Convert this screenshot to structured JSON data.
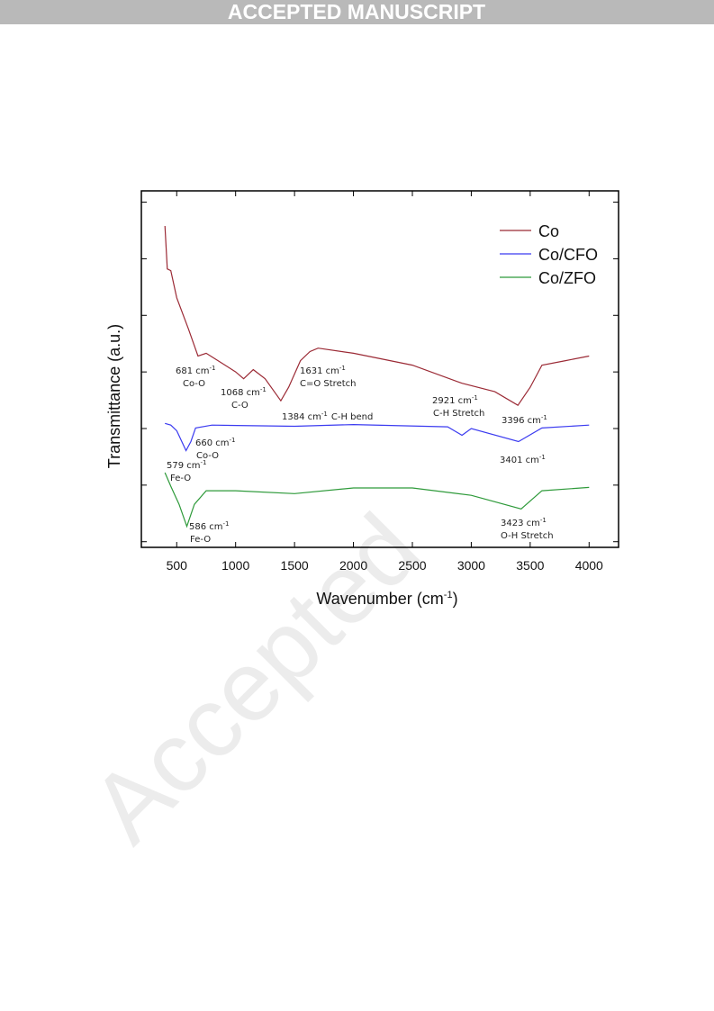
{
  "header": {
    "title": "ACCEPTED MANUSCRIPT"
  },
  "watermark": "Accepted",
  "chart_data": {
    "type": "line",
    "x_label": "Wavenumber (cm",
    "x_label_sup": "-1",
    "x_label_end": ")",
    "y_label": "Transmittance (a.u.)",
    "xlim": [
      200,
      4250
    ],
    "xticks": [
      500,
      1000,
      1500,
      2000,
      2500,
      3000,
      3500,
      4000
    ],
    "ylim": [
      0,
      6.3
    ],
    "yticks": [
      0.1,
      1.1,
      2.1,
      3.1,
      4.1,
      5.1,
      6.1
    ],
    "legend": "upper right",
    "series": [
      {
        "name": "Co",
        "color": "#9b2a35",
        "x": [
          400,
          420,
          450,
          500,
          600,
          681,
          750,
          850,
          1000,
          1068,
          1150,
          1250,
          1384,
          1450,
          1550,
          1631,
          1700,
          2000,
          2500,
          2921,
          3200,
          3396,
          3500,
          3600,
          3800,
          4000
        ],
        "values": [
          5.68,
          4.92,
          4.89,
          4.41,
          3.86,
          3.38,
          3.43,
          3.3,
          3.1,
          2.98,
          3.14,
          2.98,
          2.59,
          2.83,
          3.3,
          3.46,
          3.52,
          3.43,
          3.22,
          2.9,
          2.75,
          2.51,
          2.83,
          3.22,
          3.3,
          3.38
        ]
      },
      {
        "name": "Co/CFO",
        "color": "#3b3bf0",
        "x": [
          400,
          450,
          500,
          579,
          620,
          660,
          800,
          1500,
          2000,
          2800,
          2921,
          3000,
          3401,
          3600,
          4000
        ],
        "values": [
          2.19,
          2.16,
          2.06,
          1.71,
          1.87,
          2.11,
          2.16,
          2.14,
          2.17,
          2.13,
          1.98,
          2.1,
          1.87,
          2.11,
          2.16
        ]
      },
      {
        "name": "Co/ZFO",
        "color": "#2e9a3a",
        "x": [
          400,
          450,
          520,
          586,
          650,
          750,
          1000,
          1500,
          2000,
          2500,
          3000,
          3423,
          3600,
          4000
        ],
        "values": [
          1.32,
          1.08,
          0.76,
          0.37,
          0.76,
          1.0,
          1.0,
          0.95,
          1.05,
          1.05,
          0.92,
          0.68,
          1.0,
          1.06
        ]
      }
    ],
    "annotations": [
      {
        "text": "681 cm",
        "sup": "-1",
        "label": "Co-O"
      },
      {
        "text": "1068 cm",
        "sup": "-1",
        "label": "C-O"
      },
      {
        "text": "1384 cm",
        "sup": "-1",
        "label": "C-H bend"
      },
      {
        "text": "1631 cm",
        "sup": "-1",
        "label": "C=O Stretch"
      },
      {
        "text": "2921 cm",
        "sup": "-1",
        "label": "C-H Stretch"
      },
      {
        "text": "3396 cm",
        "sup": "-1"
      },
      {
        "text": "660 cm",
        "sup": "-1",
        "label": "Co-O"
      },
      {
        "text": "579 cm",
        "sup": "-1",
        "label": "Fe-O"
      },
      {
        "text": "3401 cm",
        "sup": "-1"
      },
      {
        "text": "586 cm",
        "sup": "-1",
        "label": "Fe-O"
      },
      {
        "text": "3423 cm",
        "sup": "-1",
        "label": "O-H Stretch"
      }
    ]
  }
}
